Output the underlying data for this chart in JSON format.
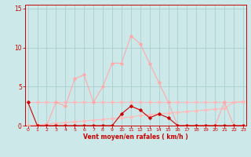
{
  "x": [
    0,
    1,
    2,
    3,
    4,
    5,
    6,
    7,
    8,
    9,
    10,
    11,
    12,
    13,
    14,
    15,
    16,
    17,
    18,
    19,
    20,
    21,
    22,
    23
  ],
  "line_rafales": [
    0,
    0,
    0,
    3,
    2.5,
    6,
    6.5,
    3,
    5,
    8,
    8,
    11.5,
    10.5,
    8,
    5.5,
    3,
    0,
    0,
    0,
    0,
    0,
    3,
    0,
    0
  ],
  "line_moyen": [
    3,
    0,
    0,
    0,
    0,
    0,
    0,
    0,
    0,
    0,
    1.5,
    2.5,
    2,
    1,
    1.5,
    1,
    0,
    0,
    0,
    0,
    0,
    0,
    0,
    0
  ],
  "line_trend1": [
    3,
    3,
    3,
    3,
    3,
    3,
    3,
    3,
    3,
    3,
    3,
    3,
    3,
    3,
    3,
    3,
    3,
    3,
    3,
    3,
    3,
    3,
    3,
    3
  ],
  "line_trend2": [
    0.0,
    0.1,
    0.2,
    0.3,
    0.4,
    0.5,
    0.6,
    0.7,
    0.8,
    0.9,
    1.0,
    1.1,
    1.3,
    1.4,
    1.5,
    1.6,
    1.7,
    1.8,
    1.9,
    2.0,
    2.1,
    2.2,
    3.0,
    3.1
  ],
  "bg_color": "#cce8e8",
  "grid_color": "#aacfcf",
  "line_color_rafales": "#ffaaaa",
  "line_color_moyen": "#cc0000",
  "line_color_trend1": "#ffbbbb",
  "line_color_trend2": "#ffbbbb",
  "axis_color": "#cc0000",
  "tick_color": "#cc0000",
  "xlabel": "Vent moyen/en rafales ( km/h )",
  "ylim": [
    0,
    15.5
  ],
  "yticks": [
    0,
    5,
    10,
    15
  ],
  "xticks": [
    0,
    1,
    2,
    3,
    4,
    5,
    6,
    7,
    8,
    9,
    10,
    11,
    12,
    13,
    14,
    15,
    16,
    17,
    18,
    19,
    20,
    21,
    22,
    23
  ]
}
